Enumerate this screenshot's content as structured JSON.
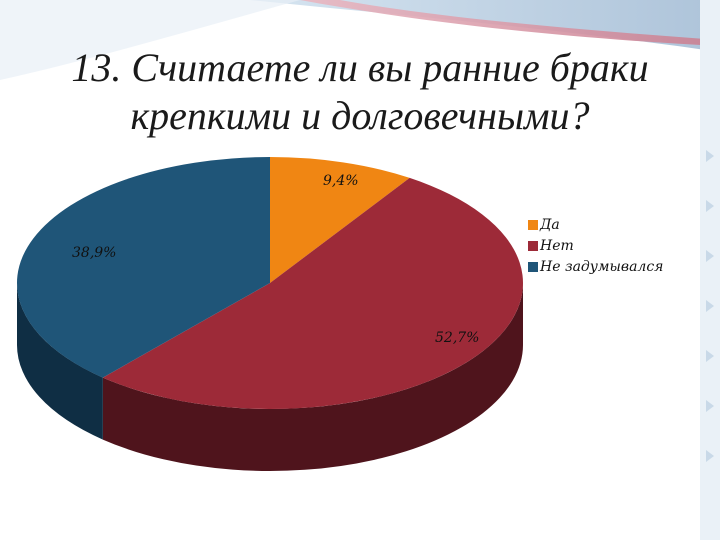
{
  "slide": {
    "title_lines": [
      "13. Считаете ли вы ранние браки",
      "крепкими и долговечными?"
    ]
  },
  "chart_data": {
    "type": "pie",
    "style": "3d",
    "legend_position": "right",
    "categories": [
      "Да",
      "Нет",
      "Не задумывался"
    ],
    "values": [
      9.4,
      52.7,
      38.9
    ],
    "data_labels": [
      "9,4%",
      "52,7%",
      "38,9%"
    ],
    "colors": [
      "#f08613",
      "#9d2a38",
      "#1f5578"
    ],
    "side_colors": [
      "#a85a0c",
      "#4f141c",
      "#0f2e44"
    ]
  }
}
